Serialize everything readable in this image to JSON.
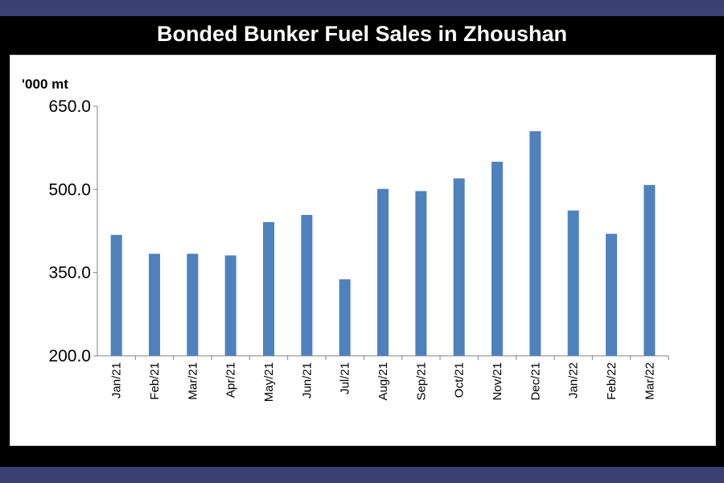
{
  "title": "Bonded Bunker Fuel Sales in Zhoushan",
  "colors": {
    "bar": "#4f81bd",
    "band": "#3a3f74",
    "frame": "#000000",
    "panel": "#ffffff"
  },
  "chart_data": {
    "type": "bar",
    "title": "Bonded Bunker Fuel Sales in Zhoushan",
    "unit_label": "'000 mt",
    "xlabel": "",
    "ylabel": "",
    "ylim": [
      200,
      650
    ],
    "yticks": [
      "650.0",
      "500.0",
      "350.0",
      "200.0"
    ],
    "ytick_values": [
      650,
      500,
      350,
      200
    ],
    "grid": false,
    "categories": [
      "Jan/21",
      "Feb/21",
      "Mar/21",
      "Apr/21",
      "May/21",
      "Jun/21",
      "Jul/21",
      "Aug/21",
      "Sep/21",
      "Oct/21",
      "Nov/21",
      "Dec/21",
      "Jan/22",
      "Feb/22",
      "Mar/22"
    ],
    "values": [
      418,
      384,
      384,
      381,
      441,
      454,
      338,
      501,
      497,
      520,
      550,
      605,
      462,
      420,
      508
    ]
  }
}
